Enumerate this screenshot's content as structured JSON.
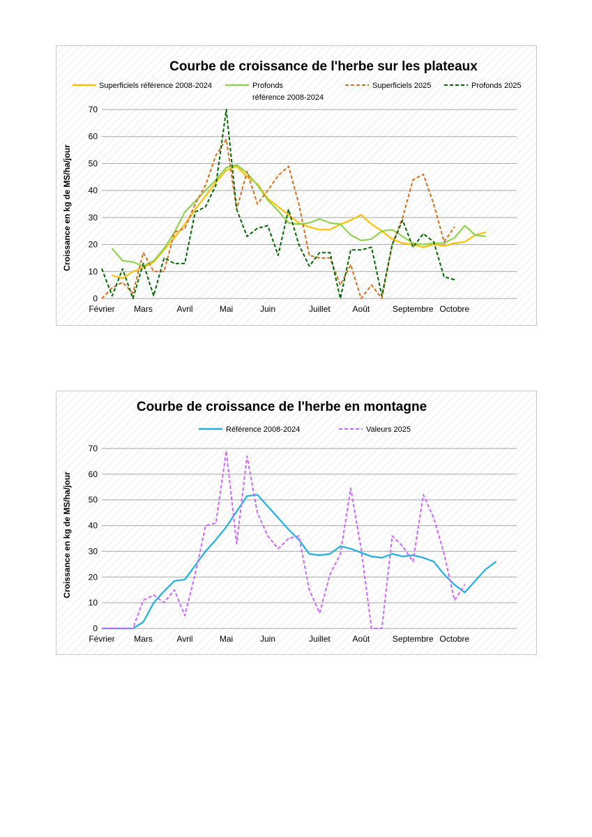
{
  "chart_data": [
    {
      "type": "line",
      "title": "Courbe de croissance de l'herbe sur les plateaux",
      "ylabel": "Croissance en kg de MS/ha/jour",
      "xlabel": "",
      "ylim": [
        0,
        70
      ],
      "yticks": [
        0,
        10,
        20,
        30,
        40,
        50,
        60,
        70
      ],
      "grid": true,
      "legend": "top",
      "x_period_count": 40,
      "month_labels": [
        {
          "label": "Février",
          "at": 0
        },
        {
          "label": "Mars",
          "at": 4
        },
        {
          "label": "Avril",
          "at": 8
        },
        {
          "label": "Mai",
          "at": 12
        },
        {
          "label": "Juin",
          "at": 16
        },
        {
          "label": "Juillet",
          "at": 21
        },
        {
          "label": "Août",
          "at": 25
        },
        {
          "label": "Septembre",
          "at": 30
        },
        {
          "label": "Octobre",
          "at": 34
        }
      ],
      "series": [
        {
          "name": "Superficiels référence 2008-2024",
          "color": "#ffc000",
          "dash": false,
          "values": [
            null,
            8.5,
            7.5,
            10,
            11.5,
            13.5,
            18,
            22.5,
            27.5,
            33,
            38,
            43,
            47.5,
            49,
            45,
            42.5,
            37,
            34,
            31,
            28,
            26.5,
            25.5,
            25.5,
            27.5,
            29,
            31,
            27.5,
            25,
            22,
            20.5,
            20,
            19,
            20,
            19.5,
            20.5,
            21,
            23.5,
            24.5
          ]
        },
        {
          "name": "Profonds référence 2008-2024",
          "color": "#92d050",
          "dash": false,
          "values": [
            null,
            18.5,
            14,
            13.5,
            12,
            14,
            18.5,
            24.5,
            32,
            36,
            40,
            44,
            48.5,
            49.5,
            46.5,
            42,
            36.5,
            32.5,
            28,
            27.5,
            28,
            29.5,
            28,
            27.5,
            23.5,
            21.5,
            22,
            25,
            25.5,
            23,
            20.5,
            20,
            20.5,
            20.5,
            22.5,
            27,
            23.5,
            23
          ]
        },
        {
          "name": "Superficiels 2025",
          "color": "#d46e1c",
          "dash": true,
          "values": [
            0,
            4,
            6,
            2,
            17,
            10,
            10,
            24.5,
            26,
            35,
            42,
            53,
            59,
            33,
            47,
            35,
            40,
            45.5,
            49,
            35,
            16,
            15,
            15,
            5,
            12.5,
            0,
            5,
            0,
            20,
            30,
            44,
            46,
            35,
            21,
            26.5
          ]
        },
        {
          "name": "Profonds 2025",
          "color": "#006400",
          "dash": true,
          "values": [
            11,
            1,
            11,
            0,
            13,
            1,
            15,
            13,
            13,
            32,
            34,
            42,
            70,
            33,
            23,
            26,
            27,
            16,
            33,
            20,
            12,
            17,
            17,
            0,
            18,
            18,
            19,
            1,
            20,
            29,
            19,
            24,
            21,
            8,
            7
          ]
        }
      ]
    },
    {
      "type": "line",
      "title": "Courbe de croissance de l'herbe en montagne",
      "ylabel": "Croissance en kg de MS/ha/jour",
      "xlabel": "",
      "ylim": [
        0,
        70
      ],
      "yticks": [
        0,
        10,
        20,
        30,
        40,
        50,
        60,
        70
      ],
      "grid": true,
      "legend": "top",
      "x_period_count": 40,
      "month_labels": [
        {
          "label": "Février",
          "at": 0
        },
        {
          "label": "Mars",
          "at": 4
        },
        {
          "label": "Avril",
          "at": 8
        },
        {
          "label": "Mai",
          "at": 12
        },
        {
          "label": "Juin",
          "at": 16
        },
        {
          "label": "Juillet",
          "at": 21
        },
        {
          "label": "Août",
          "at": 25
        },
        {
          "label": "Septembre",
          "at": 30
        },
        {
          "label": "Octobre",
          "at": 34
        }
      ],
      "series": [
        {
          "name": "Référence 2008-2024",
          "color": "#1cb0e0",
          "dash": false,
          "values": [
            0,
            0,
            0,
            0,
            2.5,
            10,
            14.5,
            18.5,
            19,
            24.5,
            30,
            34.5,
            39.5,
            45.5,
            51.5,
            52,
            47.5,
            43,
            38.5,
            34.5,
            29,
            28.5,
            29,
            32,
            31,
            29.5,
            28,
            27.5,
            29,
            28,
            28.5,
            27.5,
            26,
            21,
            17,
            14,
            18.5,
            23,
            26
          ]
        },
        {
          "name": "Valeurs 2025",
          "color": "#cc66ff",
          "dash": true,
          "values": [
            0,
            0,
            0,
            0,
            11,
            13,
            10,
            15,
            5,
            21,
            40,
            41,
            69,
            33,
            67,
            45,
            36,
            31,
            35,
            36,
            15,
            6,
            21,
            29,
            54.5,
            31,
            0,
            0,
            36,
            32,
            26,
            52,
            43,
            29,
            11,
            17
          ]
        }
      ]
    }
  ]
}
